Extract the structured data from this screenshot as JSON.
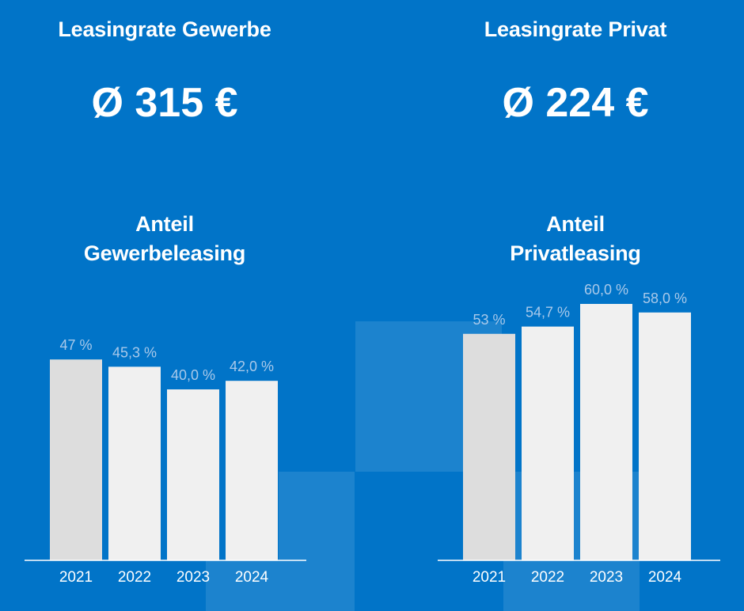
{
  "panels": [
    {
      "heading": "Leasingrate Gewerbe",
      "value": "Ø 315 €",
      "subheading_line1": "Anteil",
      "subheading_line2": "Gewerbeleasing"
    },
    {
      "heading": "Leasingrate Privat",
      "value": "Ø 224 €",
      "subheading_line1": "Anteil",
      "subheading_line2": "Privatleasing"
    }
  ],
  "colors": {
    "background": "#0174c8",
    "bar_first": "#dddddd",
    "bar_other": "#f0f0f0",
    "value_label": "#a9c9ea",
    "axis": "#ffffff"
  },
  "chart_data": [
    {
      "type": "bar",
      "title": "Anteil Gewerbeleasing",
      "categories": [
        "2021",
        "2022",
        "2023",
        "2024"
      ],
      "values": [
        47,
        45.3,
        40.0,
        42.0
      ],
      "value_labels": [
        "47 %",
        "45,3 %",
        "40,0 %",
        "42,0 %"
      ],
      "ylim": [
        0,
        75
      ],
      "grid": false
    },
    {
      "type": "bar",
      "title": "Anteil Privatleasing",
      "categories": [
        "2021",
        "2022",
        "2023",
        "2024"
      ],
      "values": [
        53,
        54.7,
        60.0,
        58.0
      ],
      "value_labels": [
        "53 %",
        "54,7 %",
        "60,0 %",
        "58,0 %"
      ],
      "ylim": [
        0,
        75
      ],
      "grid": false
    }
  ]
}
